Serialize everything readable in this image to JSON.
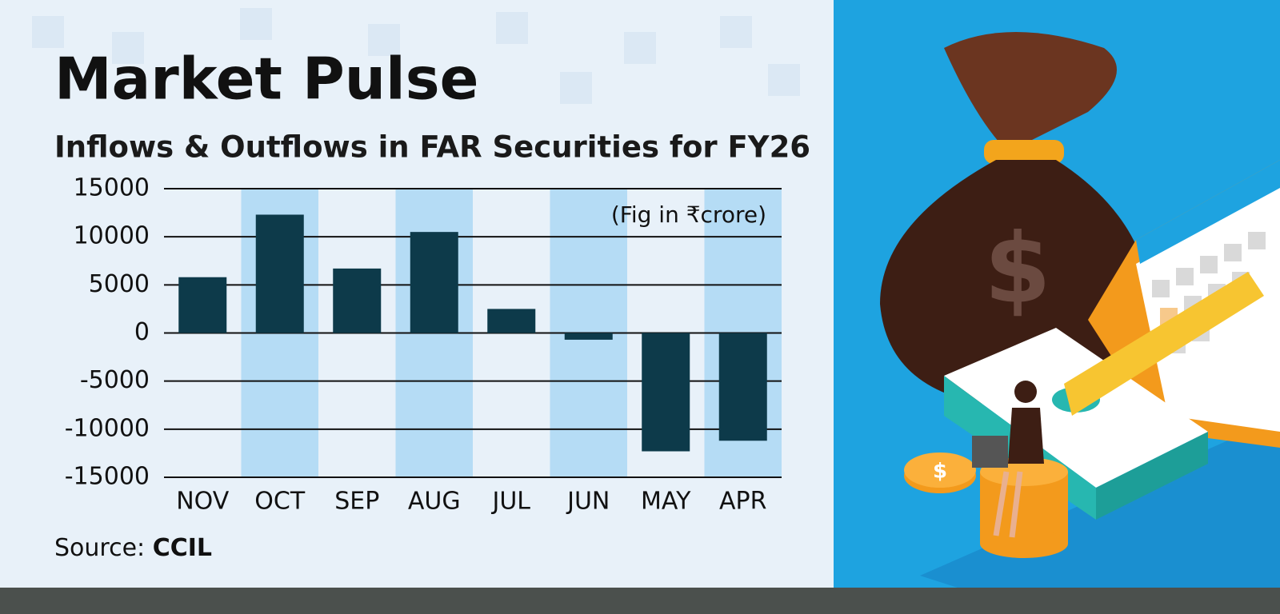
{
  "chart_data": {
    "type": "bar",
    "title": "Market Pulse",
    "subtitle": "Inflows & Outflows in FAR Securities for FY26",
    "annotation": "(Fig in ₹crore)",
    "source_label": "Source:",
    "source": "CCIL",
    "categories": [
      "NOV",
      "OCT",
      "SEP",
      "AUG",
      "JUL",
      "JUN",
      "MAY",
      "APR"
    ],
    "values": [
      5800,
      12300,
      6700,
      10500,
      2500,
      -700,
      -12300,
      -11200
    ],
    "color": "#0d3a4a",
    "ylim": [
      -15000,
      15000
    ],
    "yticks": [
      -15000,
      -10000,
      -5000,
      0,
      5000,
      10000,
      15000
    ],
    "grid": true
  }
}
